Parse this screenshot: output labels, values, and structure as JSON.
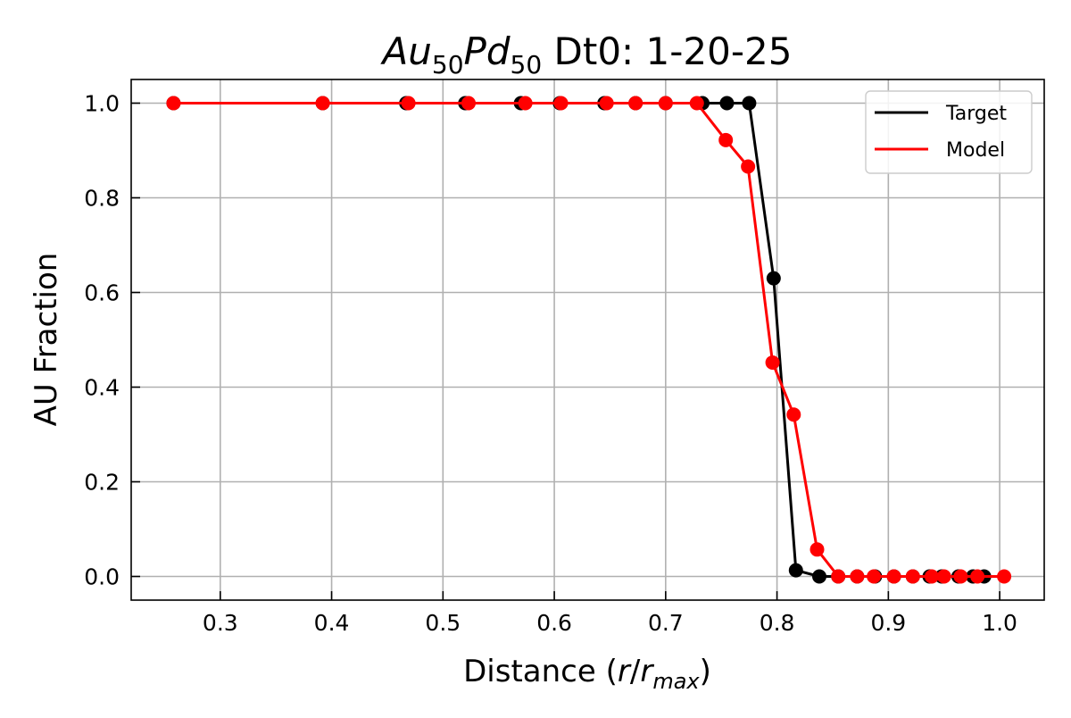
{
  "chart_data": {
    "type": "line",
    "title": {
      "part1": "Au",
      "part1_sub": "50",
      "part2": "Pd",
      "part2_sub": "50",
      "rest": " Dt0: 1-20-25"
    },
    "xlabel": {
      "prefix": "Distance (",
      "r": "r",
      "slash": "/",
      "r2": "r",
      "sub": "max",
      "suffix": ")"
    },
    "ylabel": "AU Fraction",
    "xlim": [
      0.22,
      1.04
    ],
    "ylim": [
      -0.05,
      1.05
    ],
    "xticks": [
      0.3,
      0.4,
      0.5,
      0.6,
      0.7,
      0.8,
      0.9,
      1.0
    ],
    "xtick_labels": [
      "0.3",
      "0.4",
      "0.5",
      "0.6",
      "0.7",
      "0.8",
      "0.9",
      "1.0"
    ],
    "yticks": [
      0.0,
      0.2,
      0.4,
      0.6,
      0.8,
      1.0
    ],
    "ytick_labels": [
      "0.0",
      "0.2",
      "0.4",
      "0.6",
      "0.8",
      "1.0"
    ],
    "grid": true,
    "legend_position": "top-right",
    "series": [
      {
        "name": "Target",
        "color": "#000000",
        "x": [
          0.258,
          0.392,
          0.467,
          0.52,
          0.57,
          0.605,
          0.645,
          0.673,
          0.7,
          0.733,
          0.755,
          0.775,
          0.797,
          0.817,
          0.838,
          0.855,
          0.872,
          0.888,
          0.905,
          0.922,
          0.937,
          0.948,
          0.963,
          0.976,
          0.986
        ],
        "y": [
          1.0,
          1.0,
          1.0,
          1.0,
          1.0,
          1.0,
          1.0,
          1.0,
          1.0,
          1.0,
          1.0,
          1.0,
          0.63,
          0.013,
          0.0,
          0.0,
          0.0,
          0.0,
          0.0,
          0.0,
          0.0,
          0.0,
          0.0,
          0.0,
          0.0
        ]
      },
      {
        "name": "Model",
        "color": "#ff0000",
        "x": [
          0.258,
          0.392,
          0.469,
          0.523,
          0.574,
          0.606,
          0.647,
          0.673,
          0.7,
          0.728,
          0.754,
          0.774,
          0.796,
          0.815,
          0.836,
          0.855,
          0.872,
          0.887,
          0.905,
          0.922,
          0.939,
          0.95,
          0.965,
          0.98,
          1.004
        ],
        "y": [
          1.0,
          1.0,
          1.0,
          1.0,
          1.0,
          1.0,
          1.0,
          1.0,
          1.0,
          1.0,
          0.922,
          0.866,
          0.452,
          0.342,
          0.057,
          0.0,
          0.0,
          0.0,
          0.0,
          0.0,
          0.0,
          0.0,
          0.0,
          0.0,
          0.0
        ]
      }
    ]
  }
}
